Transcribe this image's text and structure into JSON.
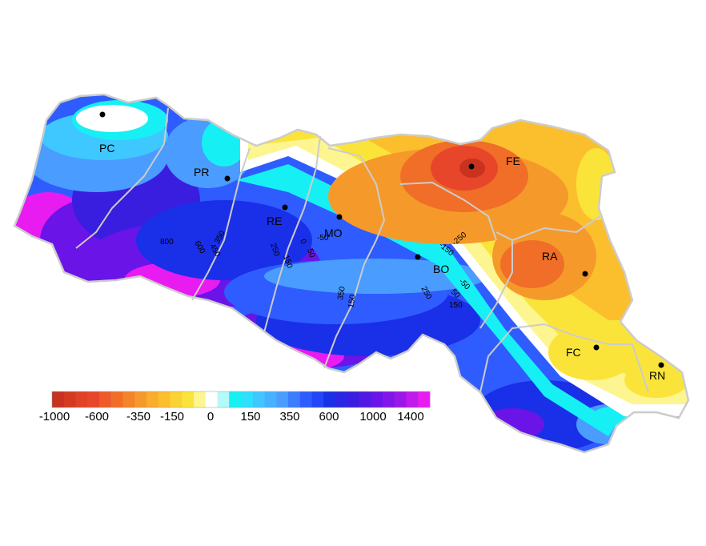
{
  "map": {
    "colors": {
      "deep_red": "#c8321e",
      "red": "#e8462a",
      "orange_red": "#f06e28",
      "orange": "#f59a2a",
      "amber": "#fbbf2e",
      "yellow": "#fbe43a",
      "pale_yellow": "#fdf590",
      "white": "#ffffff",
      "cyan": "#16f0f5",
      "sky": "#3ec8ff",
      "light_blue": "#4a9cff",
      "blue": "#2f5cff",
      "deep_blue": "#1a2fe8",
      "indigo": "#3a1ee0",
      "violet": "#6a14e8",
      "purple": "#9a18ea",
      "magenta": "#e81cf0",
      "border": "#cccccc"
    },
    "cities": [
      {
        "id": "pc",
        "label": "PC"
      },
      {
        "id": "pr",
        "label": "PR"
      },
      {
        "id": "re",
        "label": "RE"
      },
      {
        "id": "mo",
        "label": "MO"
      },
      {
        "id": "bo",
        "label": "BO"
      },
      {
        "id": "fe",
        "label": "FE"
      },
      {
        "id": "ra",
        "label": "RA"
      },
      {
        "id": "fc",
        "label": "FC"
      },
      {
        "id": "rn",
        "label": "RN"
      }
    ],
    "contour_labels": [
      "800",
      "600",
      "450",
      "350",
      "250",
      "150",
      "0",
      "50",
      "-50",
      "350",
      "150",
      "250",
      "-150",
      "-250",
      "-50",
      "50",
      "150"
    ]
  },
  "legend": {
    "swatches": [
      "#c8321e",
      "#d43a22",
      "#e04226",
      "#e8462a",
      "#f05a2a",
      "#f06e28",
      "#f38429",
      "#f59a2a",
      "#f8ad2c",
      "#fbbf2e",
      "#fbd234",
      "#fbe43a",
      "#fdf590",
      "#ffffff",
      "#b4faf8",
      "#16f0f5",
      "#2ee0fa",
      "#3ec8ff",
      "#46b2ff",
      "#4a9cff",
      "#3c7cff",
      "#2f5cff",
      "#2446f4",
      "#1a2fe8",
      "#2a26e4",
      "#3a1ee0",
      "#5218e4",
      "#6a14e8",
      "#8216e9",
      "#9a18ea",
      "#c01aed",
      "#e81cf0"
    ],
    "tick_labels": [
      "-1000",
      "-600",
      "-350",
      "-150",
      "0",
      "150",
      "350",
      "600",
      "1000",
      "1400"
    ]
  }
}
